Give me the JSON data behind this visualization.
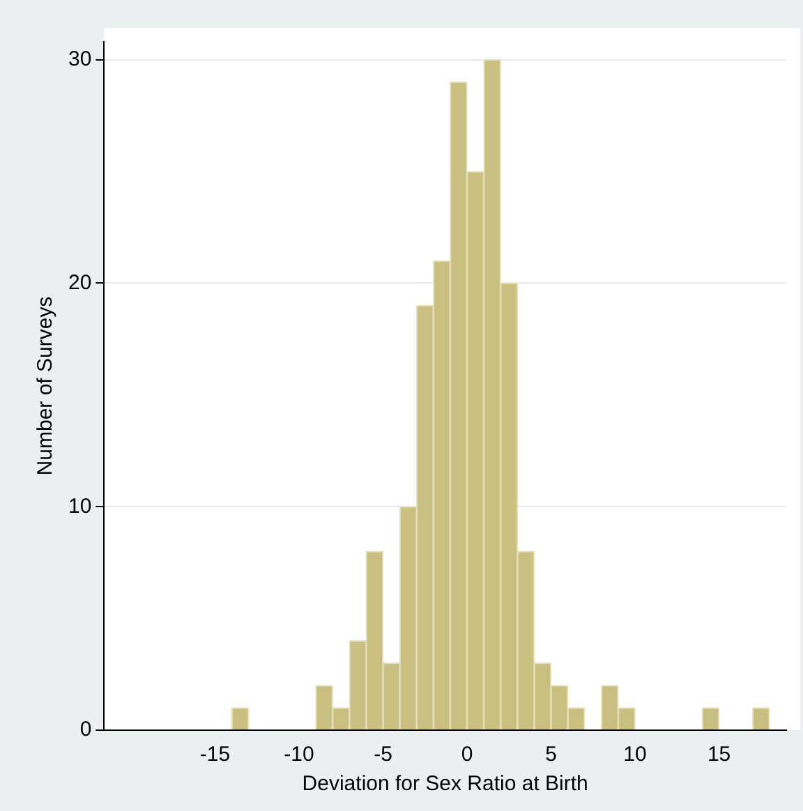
{
  "chart_data": {
    "type": "histogram",
    "xlabel": "Deviation for Sex Ratio at Birth",
    "ylabel": "Number of Surveys",
    "bins": [
      -14,
      -13,
      -12,
      -11,
      -10,
      -9,
      -8,
      -7,
      -6,
      -5,
      -4,
      -3,
      -2,
      -1,
      0,
      1,
      2,
      3,
      4,
      5,
      6,
      7,
      8,
      9,
      10,
      11,
      12,
      13,
      14,
      15,
      16,
      17,
      18
    ],
    "values": [
      1,
      0,
      0,
      0,
      0,
      2,
      1,
      4,
      8,
      3,
      10,
      19,
      21,
      29,
      25,
      30,
      20,
      8,
      3,
      2,
      1,
      0,
      2,
      1,
      0,
      0,
      0,
      0,
      1,
      0,
      0,
      1
    ],
    "color": "#c8bf80",
    "xlim": [
      -21.6,
      19
    ],
    "xticks": [
      -15,
      -10,
      -5,
      0,
      5,
      10,
      15
    ],
    "ylim": [
      0,
      30.8
    ],
    "yticks": [
      0,
      10,
      20,
      30
    ],
    "grid": "y",
    "legend": false
  }
}
